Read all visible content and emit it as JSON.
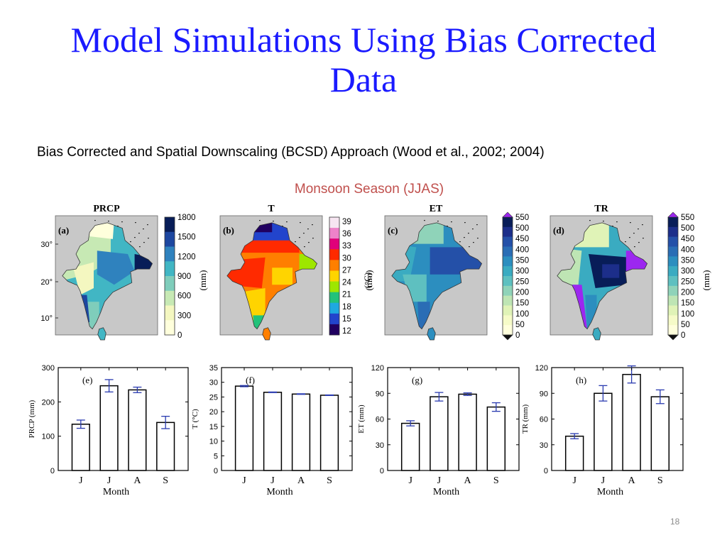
{
  "slide": {
    "title": "Model Simulations Using Bias Corrected Data",
    "subtitle": "Bias Corrected and Spatial Downscaling (BCSD) Approach (Wood et al., 2002; 2004)",
    "season": "Monsoon Season (JJAS)",
    "page_number": "18"
  },
  "maps": [
    {
      "panel": "(a)",
      "title": "PRCP",
      "unit": "(mm)",
      "colorbar": [
        "1800",
        "1500",
        "1200",
        "900",
        "600",
        "300",
        "0"
      ],
      "palette": [
        "#081d58",
        "#1d47a0",
        "#2f82be",
        "#41b6c4",
        "#7fcdbb",
        "#c7e9b4",
        "#f4f7c0",
        "#ffffdc"
      ],
      "triangles": false,
      "lat_labels": [
        "30°",
        "20°",
        "10°"
      ]
    },
    {
      "panel": "(b)",
      "title": "T",
      "unit": "(°C)",
      "colorbar": [
        "39",
        "36",
        "33",
        "30",
        "27",
        "24",
        "21",
        "18",
        "15",
        "12"
      ],
      "palette": [
        "#f7e6f2",
        "#ee82c9",
        "#e0007a",
        "#ff2a00",
        "#ff7f00",
        "#ffd400",
        "#9ee600",
        "#22c27a",
        "#1fa8e0",
        "#2244cc",
        "#200060"
      ],
      "triangles": false
    },
    {
      "panel": "(c)",
      "title": "ET",
      "unit": "(mm)",
      "colorbar": [
        "550",
        "500",
        "450",
        "400",
        "350",
        "300",
        "250",
        "200",
        "150",
        "100",
        "50",
        "0"
      ],
      "palette": [
        "#081d58",
        "#1c2e8a",
        "#2450a8",
        "#2a6db5",
        "#2c8ebf",
        "#3aabc1",
        "#5ec0c0",
        "#8fd3b9",
        "#bee5b4",
        "#e0f3b7",
        "#f6fbc8",
        "#ffffdc"
      ],
      "triangles": true
    },
    {
      "panel": "(d)",
      "title": "TR",
      "unit": "(mm)",
      "colorbar": [
        "550",
        "500",
        "450",
        "400",
        "350",
        "300",
        "250",
        "200",
        "150",
        "100",
        "50",
        "0"
      ],
      "palette": [
        "#081d58",
        "#1c2e8a",
        "#2450a8",
        "#2a6db5",
        "#2c8ebf",
        "#3aabc1",
        "#5ec0c0",
        "#8fd3b9",
        "#bee5b4",
        "#e0f3b7",
        "#f6fbc8",
        "#ffffdc"
      ],
      "triangles": true
    }
  ],
  "chart_data": [
    {
      "type": "bar",
      "panel": "(e)",
      "categories": [
        "J",
        "J",
        "A",
        "S"
      ],
      "values": [
        135,
        247,
        235,
        140
      ],
      "errors": [
        12,
        18,
        8,
        18
      ],
      "ylabel": "PRCP (mm)",
      "xlabel": "Month",
      "ylim": [
        0,
        300
      ],
      "yticks": [
        "0",
        "100",
        "200",
        "300"
      ]
    },
    {
      "type": "bar",
      "panel": "(f)",
      "categories": [
        "J",
        "J",
        "A",
        "S"
      ],
      "values": [
        28.7,
        26.6,
        26.0,
        25.6
      ],
      "errors": [
        0.2,
        0.1,
        0.1,
        0.1
      ],
      "ylabel": "T (°C)",
      "xlabel": "Month",
      "ylim": [
        0,
        35
      ],
      "yticks": [
        "0",
        "5",
        "10",
        "15",
        "20",
        "25",
        "30",
        "35"
      ]
    },
    {
      "type": "bar",
      "panel": "(g)",
      "categories": [
        "J",
        "J",
        "A",
        "S"
      ],
      "values": [
        55,
        86,
        89,
        74
      ],
      "errors": [
        3,
        5,
        1.5,
        5
      ],
      "ylabel": "ET (mm)",
      "xlabel": "Month",
      "ylim": [
        0,
        120
      ],
      "yticks": [
        "0",
        "30",
        "60",
        "90",
        "120"
      ]
    },
    {
      "type": "bar",
      "panel": "(h)",
      "categories": [
        "J",
        "J",
        "A",
        "S"
      ],
      "values": [
        40,
        90,
        112,
        86
      ],
      "errors": [
        3,
        9,
        10,
        8
      ],
      "ylabel": "TR (mm)",
      "xlabel": "Month",
      "ylim": [
        0,
        120
      ],
      "yticks": [
        "0",
        "30",
        "60",
        "90",
        "120"
      ]
    }
  ]
}
